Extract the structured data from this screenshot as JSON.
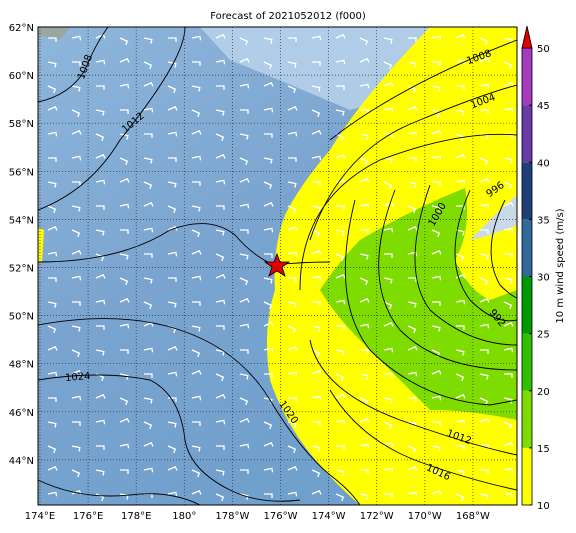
{
  "header": {
    "title": "Forecast of 2021052012 (f000)"
  },
  "lat_labels": [
    "62°N",
    "60°N",
    "58°N",
    "56°N",
    "54°N",
    "52°N",
    "50°N",
    "48°N",
    "46°N",
    "44°N"
  ],
  "lon_labels": [
    "174°E",
    "176°E",
    "178°E",
    "180°",
    "178°W",
    "176°W",
    "174°W",
    "172°W",
    "170°W",
    "168°W"
  ],
  "colorbar": {
    "label": "10 m wind speed (m/s)",
    "ticks": [
      10,
      15,
      20,
      25,
      30,
      35,
      40,
      45,
      50
    ],
    "colors": [
      "#ffff00",
      "#7fdc00",
      "#30c000",
      "#009a00",
      "#2f6a99",
      "#1f3f78",
      "#6a3aa6",
      "#a53bbd"
    ],
    "extend_color": "#e00000"
  },
  "contour_labels": [
    "1008",
    "1012",
    "1008",
    "1004",
    "996",
    "1000",
    "992",
    "1024",
    "1020",
    "1012",
    "1016"
  ]
}
